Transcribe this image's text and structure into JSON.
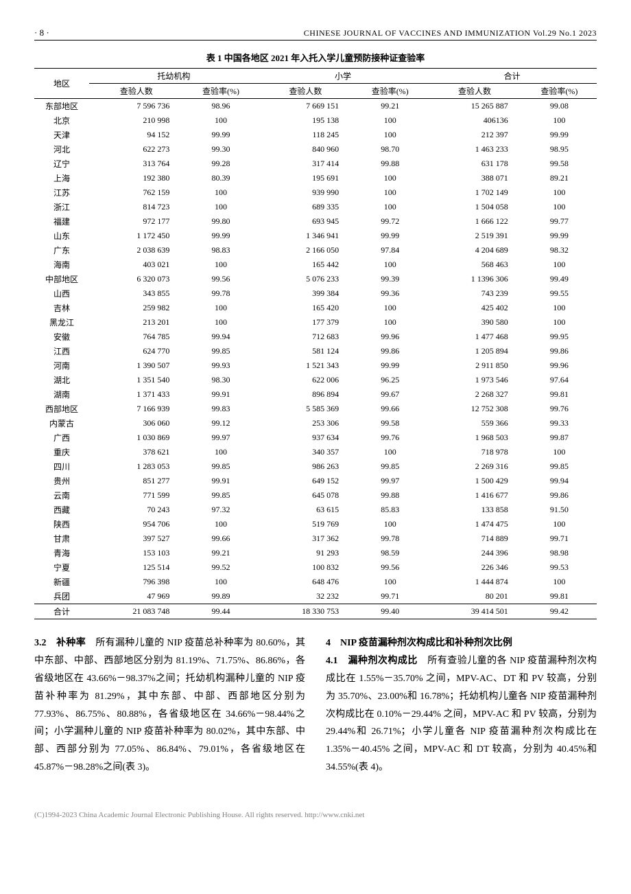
{
  "header": {
    "page_num": "· 8 ·",
    "journal": "CHINESE JOURNAL OF VACCINES AND IMMUNIZATION Vol.29  No.1  2023"
  },
  "table": {
    "title": "表 1  中国各地区 2021 年入托入学儿童预防接种证查验率",
    "group_headers": [
      "地区",
      "托幼机构",
      "小学",
      "合计"
    ],
    "sub_headers": [
      "查验人数",
      "查验率(%)",
      "查验人数",
      "查验率(%)",
      "查验人数",
      "查验率(%)"
    ],
    "rows": [
      {
        "region": "东部地区",
        "c1": "7 596 736",
        "c2": "98.96",
        "c3": "7 669 151",
        "c4": "99.21",
        "c5": "15 265 887",
        "c6": "99.08"
      },
      {
        "region": "北京",
        "c1": "210 998",
        "c2": "100",
        "c3": "195 138",
        "c4": "100",
        "c5": "406136",
        "c6": "100"
      },
      {
        "region": "天津",
        "c1": "94 152",
        "c2": "99.99",
        "c3": "118 245",
        "c4": "100",
        "c5": "212 397",
        "c6": "99.99"
      },
      {
        "region": "河北",
        "c1": "622 273",
        "c2": "99.30",
        "c3": "840 960",
        "c4": "98.70",
        "c5": "1 463 233",
        "c6": "98.95"
      },
      {
        "region": "辽宁",
        "c1": "313 764",
        "c2": "99.28",
        "c3": "317 414",
        "c4": "99.88",
        "c5": "631 178",
        "c6": "99.58"
      },
      {
        "region": "上海",
        "c1": "192 380",
        "c2": "80.39",
        "c3": "195 691",
        "c4": "100",
        "c5": "388 071",
        "c6": "89.21"
      },
      {
        "region": "江苏",
        "c1": "762 159",
        "c2": "100",
        "c3": "939 990",
        "c4": "100",
        "c5": "1 702 149",
        "c6": "100"
      },
      {
        "region": "浙江",
        "c1": "814 723",
        "c2": "100",
        "c3": "689 335",
        "c4": "100",
        "c5": "1 504 058",
        "c6": "100"
      },
      {
        "region": "福建",
        "c1": "972 177",
        "c2": "99.80",
        "c3": "693 945",
        "c4": "99.72",
        "c5": "1 666 122",
        "c6": "99.77"
      },
      {
        "region": "山东",
        "c1": "1 172 450",
        "c2": "99.99",
        "c3": "1 346 941",
        "c4": "99.99",
        "c5": "2 519 391",
        "c6": "99.99"
      },
      {
        "region": "广东",
        "c1": "2 038 639",
        "c2": "98.83",
        "c3": "2 166 050",
        "c4": "97.84",
        "c5": "4 204 689",
        "c6": "98.32"
      },
      {
        "region": "海南",
        "c1": "403 021",
        "c2": "100",
        "c3": "165 442",
        "c4": "100",
        "c5": "568 463",
        "c6": "100"
      },
      {
        "region": "中部地区",
        "c1": "6 320 073",
        "c2": "99.56",
        "c3": "5 076 233",
        "c4": "99.39",
        "c5": "1 1396 306",
        "c6": "99.49"
      },
      {
        "region": "山西",
        "c1": "343 855",
        "c2": "99.78",
        "c3": "399 384",
        "c4": "99.36",
        "c5": "743 239",
        "c6": "99.55"
      },
      {
        "region": "吉林",
        "c1": "259 982",
        "c2": "100",
        "c3": "165 420",
        "c4": "100",
        "c5": "425 402",
        "c6": "100"
      },
      {
        "region": "黑龙江",
        "c1": "213 201",
        "c2": "100",
        "c3": "177 379",
        "c4": "100",
        "c5": "390 580",
        "c6": "100"
      },
      {
        "region": "安徽",
        "c1": "764 785",
        "c2": "99.94",
        "c3": "712 683",
        "c4": "99.96",
        "c5": "1 477 468",
        "c6": "99.95"
      },
      {
        "region": "江西",
        "c1": "624 770",
        "c2": "99.85",
        "c3": "581 124",
        "c4": "99.86",
        "c5": "1 205 894",
        "c6": "99.86"
      },
      {
        "region": "河南",
        "c1": "1 390 507",
        "c2": "99.93",
        "c3": "1 521 343",
        "c4": "99.99",
        "c5": "2 911 850",
        "c6": "99.96"
      },
      {
        "region": "湖北",
        "c1": "1 351 540",
        "c2": "98.30",
        "c3": "622 006",
        "c4": "96.25",
        "c5": "1 973 546",
        "c6": "97.64"
      },
      {
        "region": "湖南",
        "c1": "1 371 433",
        "c2": "99.91",
        "c3": "896 894",
        "c4": "99.67",
        "c5": "2 268 327",
        "c6": "99.81"
      },
      {
        "region": "西部地区",
        "c1": "7 166 939",
        "c2": "99.83",
        "c3": "5 585 369",
        "c4": "99.66",
        "c5": "12 752 308",
        "c6": "99.76"
      },
      {
        "region": "内蒙古",
        "c1": "306 060",
        "c2": "99.12",
        "c3": "253 306",
        "c4": "99.58",
        "c5": "559 366",
        "c6": "99.33"
      },
      {
        "region": "广西",
        "c1": "1 030 869",
        "c2": "99.97",
        "c3": "937 634",
        "c4": "99.76",
        "c5": "1 968 503",
        "c6": "99.87"
      },
      {
        "region": "重庆",
        "c1": "378 621",
        "c2": "100",
        "c3": "340 357",
        "c4": "100",
        "c5": "718 978",
        "c6": "100"
      },
      {
        "region": "四川",
        "c1": "1 283 053",
        "c2": "99.85",
        "c3": "986 263",
        "c4": "99.85",
        "c5": "2 269 316",
        "c6": "99.85"
      },
      {
        "region": "贵州",
        "c1": "851 277",
        "c2": "99.91",
        "c3": "649 152",
        "c4": "99.97",
        "c5": "1 500 429",
        "c6": "99.94"
      },
      {
        "region": "云南",
        "c1": "771 599",
        "c2": "99.85",
        "c3": "645 078",
        "c4": "99.88",
        "c5": "1 416 677",
        "c6": "99.86"
      },
      {
        "region": "西藏",
        "c1": "70 243",
        "c2": "97.32",
        "c3": "63 615",
        "c4": "85.83",
        "c5": "133 858",
        "c6": "91.50"
      },
      {
        "region": "陕西",
        "c1": "954 706",
        "c2": "100",
        "c3": "519 769",
        "c4": "100",
        "c5": "1 474 475",
        "c6": "100"
      },
      {
        "region": "甘肃",
        "c1": "397 527",
        "c2": "99.66",
        "c3": "317 362",
        "c4": "99.78",
        "c5": "714 889",
        "c6": "99.71"
      },
      {
        "region": "青海",
        "c1": "153 103",
        "c2": "99.21",
        "c3": "91 293",
        "c4": "98.59",
        "c5": "244 396",
        "c6": "98.98"
      },
      {
        "region": "宁夏",
        "c1": "125 514",
        "c2": "99.52",
        "c3": "100 832",
        "c4": "99.56",
        "c5": "226 346",
        "c6": "99.53"
      },
      {
        "region": "新疆",
        "c1": "796 398",
        "c2": "100",
        "c3": "648 476",
        "c4": "100",
        "c5": "1 444 874",
        "c6": "100"
      },
      {
        "region": "兵团",
        "c1": "47 969",
        "c2": "99.89",
        "c3": "32 232",
        "c4": "99.71",
        "c5": "80 201",
        "c6": "99.81"
      }
    ],
    "total": {
      "region": "合计",
      "c1": "21 083 748",
      "c2": "99.44",
      "c3": "18 330 753",
      "c4": "99.40",
      "c5": "39 414 501",
      "c6": "99.42"
    }
  },
  "body": {
    "left": {
      "head": "3.2　补种率",
      "text": "　所有漏种儿童的 NIP 疫苗总补种率为 80.60%，其中东部、中部、西部地区分别为 81.19%、71.75%、86.86%，各省级地区在 43.66%－98.37%之间；托幼机构漏种儿童的 NIP 疫苗补种率为 81.29%，其中东部、中部、西部地区分别为 77.93%、86.75%、80.88%，各省级地区在 34.66%－98.44%之间；小学漏种儿童的 NIP 疫苗补种率为 80.02%，其中东部、中部、西部分别为 77.05%、86.84%、79.01%，各省级地区在 45.87%－98.28%之间(表 3)。"
    },
    "right": {
      "head1": "4　NIP 疫苗漏种剂次构成比和补种剂次比例",
      "head2": "4.1　漏种剂次构成比",
      "text": "　所有查验儿童的各 NIP 疫苗漏种剂次构成比在 1.55%－35.70% 之间，MPV-AC、DT 和 PV 较高，分别为 35.70%、23.00%和 16.78%；托幼机构儿童各 NIP 疫苗漏种剂次构成比在 0.10%－29.44% 之间，MPV-AC 和 PV 较高，分别为 29.44%和 26.71%；小学儿童各 NIP 疫苗漏种剂次构成比在 1.35%－40.45% 之间，MPV-AC 和 DT 较高，分别为 40.45%和 34.55%(表 4)。"
    }
  },
  "footer": "(C)1994-2023 China Academic Journal Electronic Publishing House. All rights reserved.   http://www.cnki.net"
}
